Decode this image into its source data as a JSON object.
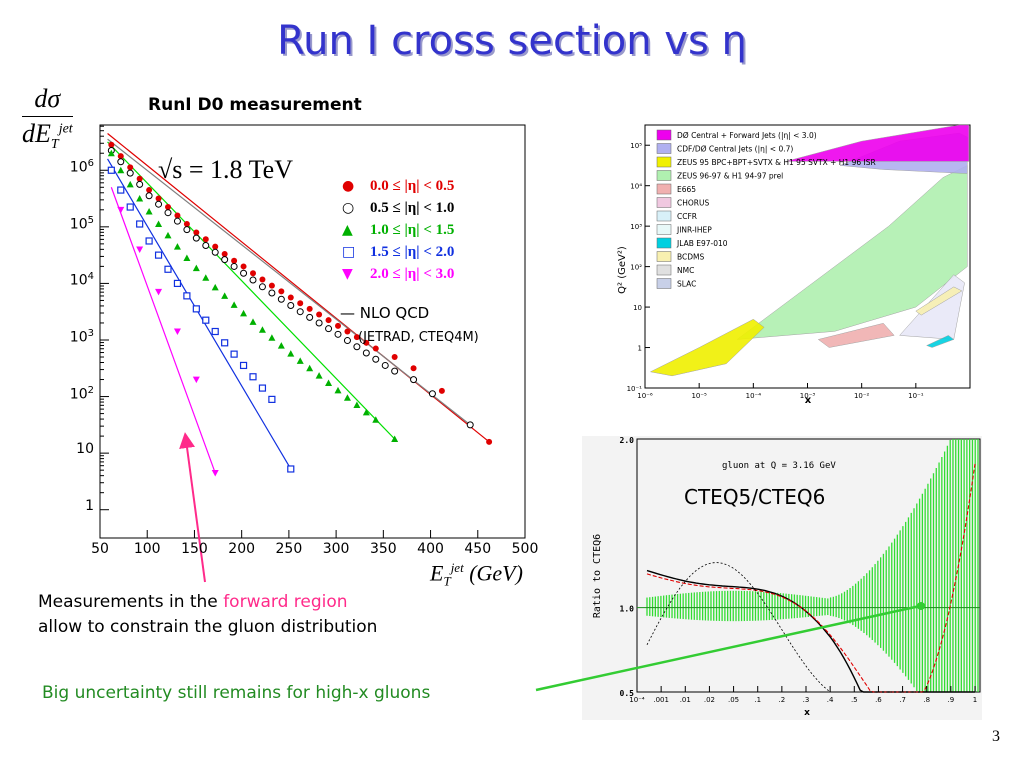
{
  "slide": {
    "title": "Run I cross section vs  η",
    "subtitle": "RunI D0 measurement",
    "page_number": "3"
  },
  "left_plot": {
    "yaxis_numerator": "dσ",
    "yaxis_denominator": "dE",
    "yaxis_sub": "T",
    "yaxis_sup": "jet",
    "sqrt_s": "√s = 1.8 TeV",
    "legend": [
      {
        "label": "0.0 ≤ |η| < 0.5",
        "color": "#e00000",
        "marker": "circle"
      },
      {
        "label": "0.5 ≤ |η| < 1.0",
        "color": "#000000",
        "marker": "open-circle"
      },
      {
        "label": "1.0 ≤ |η| < 1.5",
        "color": "#00b000",
        "marker": "triangle"
      },
      {
        "label": "1.5 ≤ |η| < 2.0",
        "color": "#1030e0",
        "marker": "open-square"
      },
      {
        "label": "2.0 ≤ |η| < 3.0",
        "color": "#ff00ff",
        "marker": "down-triangle"
      }
    ],
    "nlo_label": "NLO QCD",
    "nlo_sub": "(JETRAD, CTEQ4M)",
    "xaxis_label": "E",
    "xaxis_sub": "T",
    "xaxis_sup": "jet",
    "xaxis_unit": "(GeV)"
  },
  "chart_data": [
    {
      "type": "scatter",
      "xlim": [
        50,
        500
      ],
      "ylim_log10": [
        -0.5,
        6.8
      ],
      "xticks": [
        50,
        100,
        150,
        200,
        250,
        300,
        350,
        400,
        450,
        500
      ],
      "yticks": [
        {
          "exp": 0,
          "label": "1"
        },
        {
          "exp": 1,
          "label": "10"
        },
        {
          "exp": 2,
          "label": "10",
          "sup": "2"
        },
        {
          "exp": 3,
          "label": "10",
          "sup": "3"
        },
        {
          "exp": 4,
          "label": "10",
          "sup": "4"
        },
        {
          "exp": 5,
          "label": "10",
          "sup": "5"
        },
        {
          "exp": 6,
          "label": "10",
          "sup": "6"
        }
      ],
      "series": [
        {
          "color": "#e00000",
          "marker": "circle",
          "x": [
            62,
            72,
            82,
            92,
            102,
            112,
            122,
            132,
            142,
            152,
            162,
            172,
            182,
            192,
            202,
            212,
            222,
            232,
            242,
            252,
            262,
            272,
            282,
            292,
            302,
            312,
            322,
            332,
            342,
            362,
            382,
            412,
            462
          ],
          "log10y": [
            6.45,
            6.25,
            6.05,
            5.85,
            5.65,
            5.5,
            5.35,
            5.2,
            5.05,
            4.9,
            4.78,
            4.65,
            4.52,
            4.4,
            4.3,
            4.18,
            4.07,
            3.96,
            3.86,
            3.75,
            3.65,
            3.55,
            3.45,
            3.35,
            3.25,
            3.15,
            3.05,
            2.95,
            2.85,
            2.7,
            2.5,
            2.1,
            1.2
          ]
        },
        {
          "color": "#000000",
          "marker": "open-circle",
          "x": [
            62,
            72,
            82,
            92,
            102,
            112,
            122,
            132,
            142,
            152,
            162,
            172,
            182,
            192,
            202,
            212,
            222,
            232,
            242,
            252,
            262,
            272,
            282,
            292,
            302,
            312,
            322,
            332,
            342,
            352,
            362,
            382,
            402,
            442
          ],
          "log10y": [
            6.35,
            6.15,
            5.95,
            5.75,
            5.55,
            5.4,
            5.25,
            5.1,
            4.95,
            4.8,
            4.67,
            4.55,
            4.42,
            4.3,
            4.18,
            4.06,
            3.94,
            3.83,
            3.72,
            3.61,
            3.5,
            3.4,
            3.3,
            3.2,
            3.1,
            2.99,
            2.88,
            2.77,
            2.66,
            2.55,
            2.45,
            2.3,
            2.05,
            1.5
          ]
        },
        {
          "color": "#00b000",
          "marker": "triangle",
          "x": [
            62,
            72,
            82,
            92,
            102,
            112,
            122,
            132,
            142,
            152,
            162,
            172,
            182,
            192,
            202,
            212,
            222,
            232,
            242,
            252,
            262,
            272,
            282,
            292,
            302,
            312,
            322,
            332,
            342,
            362
          ],
          "log10y": [
            6.3,
            6.0,
            5.75,
            5.5,
            5.27,
            5.05,
            4.85,
            4.65,
            4.45,
            4.27,
            4.1,
            3.93,
            3.78,
            3.62,
            3.47,
            3.32,
            3.18,
            3.04,
            2.9,
            2.76,
            2.63,
            2.5,
            2.37,
            2.24,
            2.11,
            1.98,
            1.85,
            1.72,
            1.59,
            1.25
          ]
        },
        {
          "color": "#1030e0",
          "marker": "open-square",
          "x": [
            62,
            72,
            82,
            92,
            102,
            112,
            122,
            132,
            142,
            152,
            162,
            172,
            182,
            192,
            202,
            212,
            222,
            232,
            252
          ],
          "log10y": [
            6.0,
            5.65,
            5.35,
            5.05,
            4.75,
            4.5,
            4.25,
            4.0,
            3.78,
            3.55,
            3.35,
            3.15,
            2.95,
            2.75,
            2.55,
            2.35,
            2.15,
            1.95,
            0.72
          ]
        },
        {
          "color": "#ff00ff",
          "marker": "down-triangle",
          "x": [
            72,
            92,
            112,
            132,
            152,
            172
          ],
          "log10y": [
            5.3,
            4.6,
            3.85,
            3.15,
            2.3,
            0.65
          ]
        }
      ],
      "fits": [
        {
          "color": "#e00000",
          "x": [
            58,
            462
          ],
          "log10y": [
            6.65,
            1.2
          ]
        },
        {
          "color": "#808080",
          "x": [
            58,
            442
          ],
          "log10y": [
            6.55,
            1.5
          ]
        },
        {
          "color": "#00e000",
          "x": [
            58,
            362
          ],
          "log10y": [
            6.5,
            1.25
          ]
        },
        {
          "color": "#1030e0",
          "x": [
            58,
            252
          ],
          "log10y": [
            6.2,
            0.72
          ]
        },
        {
          "color": "#ff00ff",
          "x": [
            62,
            172
          ],
          "log10y": [
            5.7,
            0.65
          ]
        }
      ]
    },
    {
      "type": "area",
      "x_log10_range": [
        -6,
        0
      ],
      "y_log10_range": [
        -1,
        5.5
      ],
      "xaxis_label": "x",
      "yaxis_label": "Q² (GeV²)",
      "xticks": [
        "10⁻⁶",
        "10⁻⁵",
        "10⁻⁴",
        "10⁻³",
        "10⁻²",
        "10⁻¹"
      ],
      "yticks": [
        "10⁻¹",
        "1",
        "10",
        "10²",
        "10³",
        "10⁴",
        "10⁵"
      ],
      "legend": [
        {
          "label": "DØ Central + Forward Jets (|η| < 3.0)",
          "color": "#ee00ee"
        },
        {
          "label": "CDF/DØ Central Jets (|η| < 0.7)",
          "color": "#b0b0f0"
        },
        {
          "label": "ZEUS 95 BPC+BPT+SVTX & H1 95 SVTX + H1 96 ISR",
          "color": "#f0f000"
        },
        {
          "label": "ZEUS 96-97 & H1 94-97 prel",
          "color": "#b0f0b0"
        },
        {
          "label": "E665",
          "color": "#f0b0b0"
        },
        {
          "label": "CHORUS",
          "color": "#f0c8e0"
        },
        {
          "label": "CCFR",
          "color": "#d8f0f8"
        },
        {
          "label": "JINR-IHEP",
          "color": "#e8f8f8"
        },
        {
          "label": "JLAB E97-010",
          "color": "#00d0e0"
        },
        {
          "label": "BCDMS",
          "color": "#f8f0b0"
        },
        {
          "label": "NMC",
          "color": "#e0e0e0"
        },
        {
          "label": "SLAC",
          "color": "#c8d0e8"
        }
      ]
    },
    {
      "type": "line",
      "title": "gluon at Q = 3.16 GeV",
      "xaxis_label": "x",
      "yaxis_label": "Ratio to CTEQ6",
      "ylim": [
        0.5,
        2.0
      ],
      "xticks": [
        "10⁻⁴",
        ".001",
        ".01",
        ".02",
        ".05",
        ".1",
        ".2",
        ".3",
        ".4",
        ".5",
        ".6",
        ".7",
        ".8",
        ".9",
        "1"
      ],
      "yticks": [
        "0.5",
        "1.0",
        "2.0"
      ],
      "annotation": "CTEQ5/CTEQ6"
    }
  ],
  "annotations": {
    "note1_pre": "Measurements in the ",
    "note1_highlight": "forward region",
    "note1_line2": "allow to constrain the gluon distribution",
    "note2": "Big uncertainty still remains for high-x gluons"
  }
}
